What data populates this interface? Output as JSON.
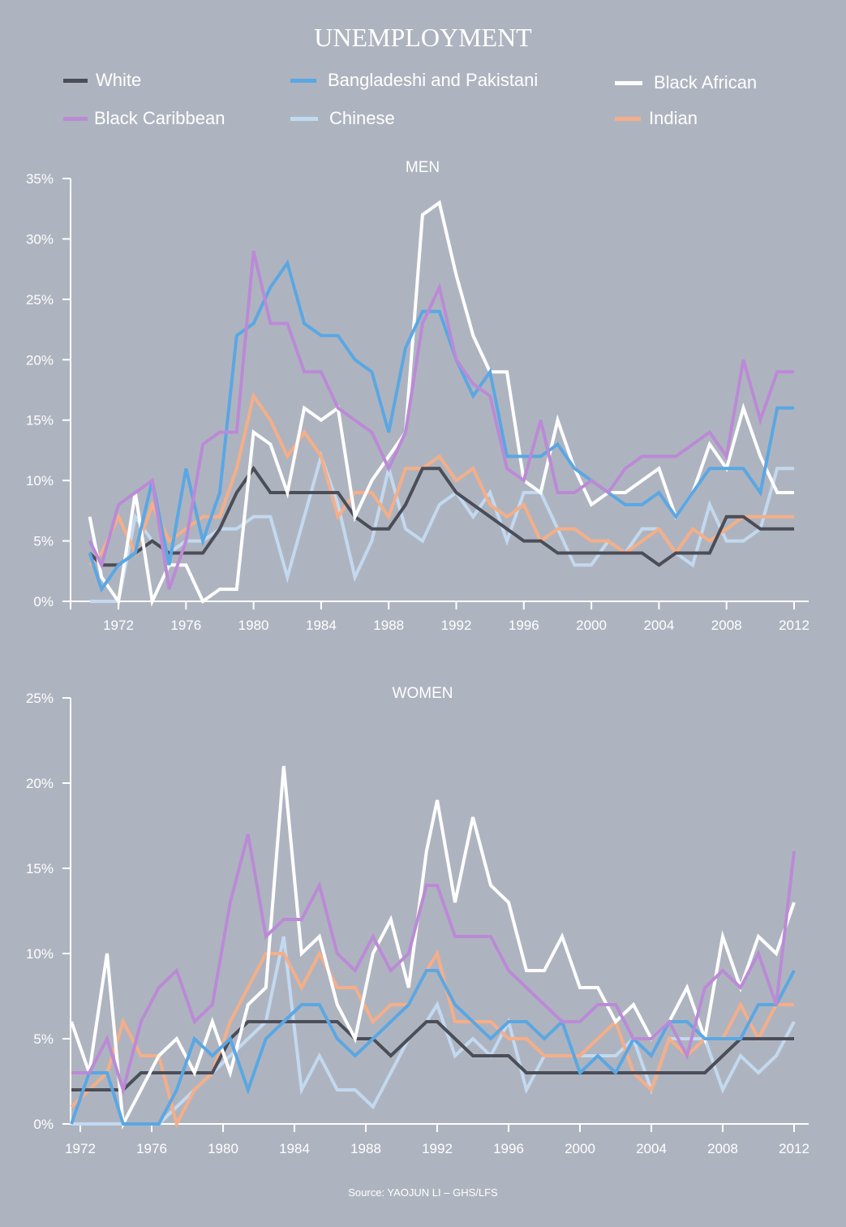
{
  "title": "UNEMPLOYMENT",
  "source": "Source: YAOJUN LI – GHS/LFS",
  "legend": [
    {
      "name": "White",
      "color": "#4b4d57"
    },
    {
      "name": "Bangladeshi and Pakistani",
      "color": "#5aa7e3"
    },
    {
      "name": "Black African",
      "color": "#ffffff"
    },
    {
      "name": "Black Caribbean",
      "color": "#bb8ad6"
    },
    {
      "name": "Chinese",
      "color": "#c2d9f0"
    },
    {
      "name": "Indian",
      "color": "#f5ae88"
    }
  ],
  "chart_data": [
    {
      "type": "line",
      "title": "MEN",
      "xlabel": "",
      "ylabel": "",
      "ylim": [
        0,
        35
      ],
      "xlim": [
        1970.3,
        2012
      ],
      "yticks": [
        "0%",
        "5%",
        "10%",
        "15%",
        "20%",
        "25%",
        "30%",
        "35%"
      ],
      "xticks": [
        "1972",
        "1976",
        "1980",
        "1984",
        "1988",
        "1992",
        "1996",
        "2000",
        "2004",
        "2008",
        "2012"
      ],
      "x": [
        1970.3,
        1971,
        1972,
        1973,
        1974,
        1975,
        1976,
        1977,
        1978,
        1979,
        1980,
        1981,
        1982,
        1983,
        1984,
        1985,
        1986,
        1987,
        1988,
        1989,
        1990,
        1991,
        1992,
        1993,
        1994,
        1995,
        1996,
        1997,
        1998,
        1999,
        2000,
        2001,
        2002,
        2003,
        2004,
        2005,
        2006,
        2007,
        2008,
        2009,
        2010,
        2011,
        2012
      ],
      "series": [
        {
          "name": "White",
          "values": [
            4,
            3,
            3,
            4,
            5,
            4,
            4,
            4,
            6,
            9,
            11,
            9,
            9,
            9,
            9,
            9,
            7,
            6,
            6,
            8,
            11,
            11,
            9,
            8,
            7,
            6,
            5,
            5,
            4,
            4,
            4,
            4,
            4,
            4,
            3,
            4,
            4,
            4,
            7,
            7,
            6,
            6,
            6
          ]
        },
        {
          "name": "Bangladeshi and Pakistani",
          "values": [
            4,
            1,
            3,
            4,
            10,
            3,
            11,
            5,
            9,
            22,
            23,
            26,
            28,
            23,
            22,
            22,
            20,
            19,
            14,
            21,
            24,
            24,
            20,
            17,
            19,
            12,
            12,
            12,
            13,
            11,
            10,
            9,
            8,
            8,
            9,
            7,
            9,
            11,
            11,
            11,
            9,
            16,
            16
          ]
        },
        {
          "name": "Black African",
          "values": [
            7,
            2,
            0,
            9,
            0,
            3,
            3,
            0,
            1,
            1,
            14,
            13,
            9,
            16,
            15,
            16,
            7,
            10,
            12,
            14,
            32,
            33,
            27,
            22,
            19,
            19,
            10,
            9,
            15,
            11,
            8,
            9,
            9,
            10,
            11,
            7,
            9,
            13,
            11,
            16,
            12,
            9,
            9
          ]
        },
        {
          "name": "Black Caribbean",
          "values": [
            5,
            3,
            8,
            9,
            10,
            1,
            5,
            13,
            14,
            14,
            29,
            23,
            23,
            19,
            19,
            16,
            15,
            14,
            11,
            14,
            23,
            26,
            20,
            18,
            17,
            11,
            10,
            15,
            9,
            9,
            10,
            9,
            11,
            12,
            12,
            12,
            13,
            14,
            12,
            20,
            15,
            19,
            19
          ]
        },
        {
          "name": "Chinese",
          "values": [
            0,
            0,
            0,
            7,
            5,
            4,
            5,
            5,
            6,
            6,
            7,
            7,
            2,
            7,
            12,
            8,
            2,
            5,
            11,
            6,
            5,
            8,
            9,
            7,
            9,
            5,
            9,
            9,
            6,
            3,
            3,
            5,
            4,
            6,
            6,
            4,
            3,
            8,
            5,
            5,
            6,
            11,
            11
          ]
        },
        {
          "name": "Indian",
          "values": [
            3,
            4,
            7,
            4,
            8,
            5,
            6,
            7,
            7,
            11,
            17,
            15,
            12,
            14,
            12,
            7,
            9,
            9,
            7,
            11,
            11,
            12,
            10,
            11,
            8,
            7,
            8,
            5,
            6,
            6,
            5,
            5,
            4,
            5,
            6,
            4,
            6,
            5,
            6,
            7,
            7,
            7,
            7
          ]
        }
      ]
    },
    {
      "type": "line",
      "title": "WOMEN",
      "xlabel": "",
      "ylabel": "",
      "ylim": [
        0,
        25
      ],
      "xlim": [
        1971.5,
        2012
      ],
      "yticks": [
        "0%",
        "5%",
        "10%",
        "15%",
        "20%",
        "25%"
      ],
      "xticks": [
        "1972",
        "1976",
        "1980",
        "1984",
        "1988",
        "1992",
        "1996",
        "2000",
        "2004",
        "2008",
        "2012"
      ],
      "x": [
        1971.5,
        1972.5,
        1973.5,
        1974.4,
        1975.4,
        1976.4,
        1977.4,
        1978.4,
        1979.4,
        1980.4,
        1981.4,
        1982.4,
        1983.4,
        1984.4,
        1985.4,
        1986.4,
        1987.4,
        1988.4,
        1989.4,
        1990.4,
        1991.4,
        1992,
        1993,
        1994,
        1995,
        1996,
        1997,
        1998,
        1999,
        2000,
        2001,
        2002,
        2003,
        2004,
        2005,
        2006,
        2007,
        2008,
        2009,
        2010,
        2011,
        2012
      ],
      "series": [
        {
          "name": "White",
          "values": [
            2,
            2,
            2,
            2,
            3,
            3,
            3,
            3,
            3,
            5,
            6,
            6,
            6,
            6,
            6,
            6,
            5,
            5,
            4,
            5,
            6,
            6,
            5,
            4,
            4,
            4,
            3,
            3,
            3,
            3,
            3,
            3,
            3,
            3,
            3,
            3,
            3,
            4,
            5,
            5,
            5,
            5
          ]
        },
        {
          "name": "Bangladeshi and Pakistani",
          "values": [
            0,
            3,
            3,
            0,
            0,
            0,
            2,
            5,
            4,
            5,
            2,
            5,
            6,
            7,
            7,
            5,
            4,
            5,
            6,
            7,
            9,
            9,
            7,
            6,
            5,
            6,
            6,
            5,
            6,
            3,
            4,
            3,
            5,
            4,
            6,
            6,
            5,
            5,
            5,
            7,
            7,
            9
          ]
        },
        {
          "name": "Black African",
          "values": [
            6,
            3,
            10,
            0,
            2,
            4,
            5,
            3,
            6,
            3,
            7,
            8,
            21,
            10,
            11,
            7,
            5,
            10,
            12,
            8,
            16,
            19,
            13,
            18,
            14,
            13,
            9,
            9,
            11,
            8,
            8,
            6,
            7,
            5,
            6,
            8,
            5,
            11,
            8,
            11,
            10,
            13
          ]
        },
        {
          "name": "Black Caribbean",
          "values": [
            3,
            3,
            5,
            2,
            6,
            8,
            9,
            6,
            7,
            13,
            17,
            11,
            12,
            12,
            14,
            10,
            9,
            11,
            9,
            10,
            14,
            14,
            11,
            11,
            11,
            9,
            8,
            7,
            6,
            6,
            7,
            7,
            5,
            5,
            6,
            4,
            8,
            9,
            8,
            10,
            7,
            16
          ]
        },
        {
          "name": "Chinese",
          "values": [
            0,
            0,
            0,
            0,
            0,
            0,
            1,
            2,
            3,
            4,
            5,
            6,
            11,
            2,
            4,
            2,
            2,
            1,
            3,
            5,
            6,
            7,
            4,
            5,
            4,
            6,
            2,
            4,
            4,
            4,
            4,
            4,
            5,
            2,
            5,
            5,
            5,
            2,
            4,
            3,
            4,
            6
          ]
        },
        {
          "name": "Indian",
          "values": [
            1,
            2,
            3,
            6,
            4,
            4,
            0,
            2,
            3,
            6,
            8,
            10,
            10,
            8,
            10,
            8,
            8,
            6,
            7,
            7,
            9,
            10,
            6,
            6,
            6,
            5,
            5,
            4,
            4,
            4,
            5,
            6,
            3,
            2,
            5,
            4,
            5,
            5,
            7,
            5,
            7,
            7
          ]
        }
      ]
    }
  ]
}
